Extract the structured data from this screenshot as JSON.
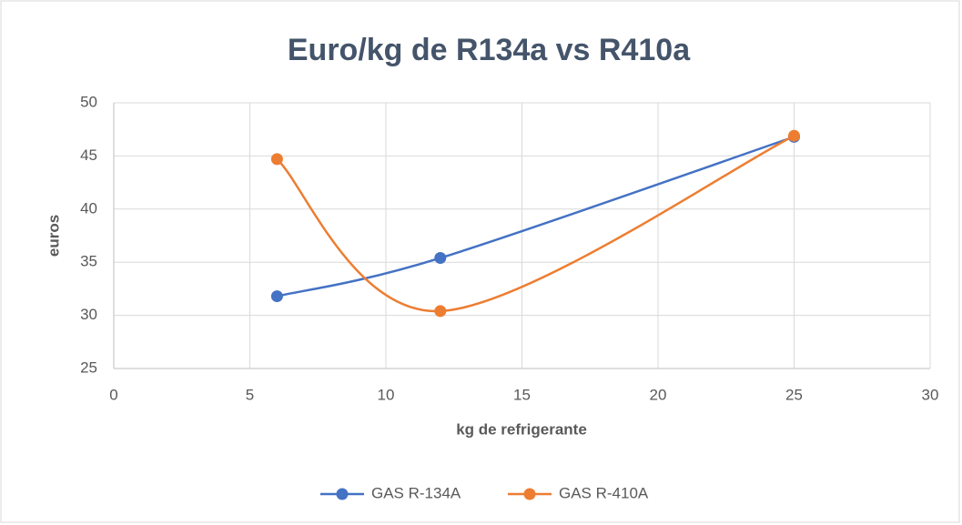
{
  "chart_data": {
    "type": "scatter-smooth",
    "title": "Euro/kg de R134a vs R410a",
    "x_label": "kg de refrigerante",
    "y_label": "euros",
    "series": [
      {
        "name": "GAS R-134A",
        "color": "#4472c4",
        "x": [
          6,
          12,
          25
        ],
        "values": [
          31.8,
          35.4,
          46.8
        ]
      },
      {
        "name": "GAS R-410A",
        "color": "#ed7d31",
        "x": [
          6,
          12,
          25
        ],
        "values": [
          44.7,
          30.4,
          46.9
        ]
      }
    ],
    "xlim": [
      0,
      30
    ],
    "xticks": [
      0,
      5,
      10,
      15,
      20,
      25,
      30
    ],
    "ylim": [
      25,
      50
    ],
    "yticks": [
      25,
      30,
      35,
      40,
      45,
      50
    ],
    "grid": true,
    "legend": "bottom"
  }
}
